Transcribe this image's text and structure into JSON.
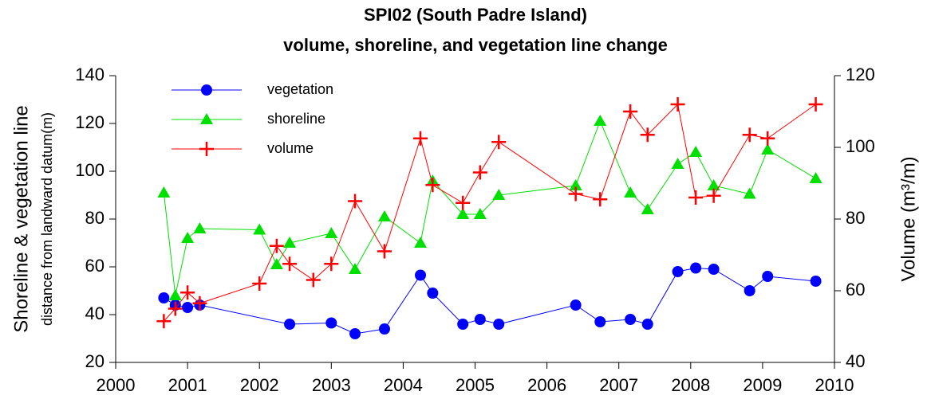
{
  "chart_data": {
    "type": "line",
    "title": "SPI02 (South Padre Island)",
    "subtitle": "volume, shoreline, and vegetation line change",
    "y_label": "Shoreline & vegetation line",
    "y_label_sub": "distance from landward datum(m)",
    "y2_label": "Volume (m³/m)",
    "xlim": [
      2000,
      2010
    ],
    "xticks": [
      2000,
      2001,
      2002,
      2003,
      2004,
      2005,
      2006,
      2007,
      2008,
      2009,
      2010
    ],
    "ylim": [
      20,
      140
    ],
    "yticks": [
      20,
      40,
      60,
      80,
      100,
      120,
      140
    ],
    "y2lim": [
      40,
      120
    ],
    "y2ticks": [
      40,
      60,
      80,
      100,
      120
    ],
    "grid": false,
    "legend": "upper-left",
    "series": [
      {
        "name": "vegetation",
        "color": "#0000ff",
        "marker": "circle",
        "x": [
          2000.67,
          2000.83,
          2001.0,
          2001.17,
          2002.42,
          2003.0,
          2003.33,
          2003.74,
          2004.24,
          2004.41,
          2004.83,
          2005.07,
          2005.33,
          2006.4,
          2006.74,
          2007.16,
          2007.4,
          2007.82,
          2008.07,
          2008.32,
          2008.82,
          2009.07,
          2009.74
        ],
        "values": [
          47,
          44,
          43,
          44,
          36,
          36.5,
          32,
          34,
          56.5,
          49,
          36,
          38,
          36,
          44,
          37,
          38,
          36,
          58,
          59.5,
          59,
          50,
          56,
          54
        ]
      },
      {
        "name": "shoreline",
        "color": "#00e000",
        "marker": "triangle",
        "x": [
          2000.67,
          2000.83,
          2001.0,
          2001.17,
          2002.0,
          2002.24,
          2002.42,
          2003.0,
          2003.33,
          2003.74,
          2004.24,
          2004.41,
          2004.83,
          2005.07,
          2005.33,
          2006.4,
          2006.74,
          2007.16,
          2007.4,
          2007.82,
          2008.07,
          2008.32,
          2008.82,
          2009.07,
          2009.74
        ],
        "values": [
          91,
          48,
          72,
          76,
          75.5,
          61,
          70,
          74,
          59,
          81,
          70,
          96,
          82,
          82,
          90,
          94,
          121,
          91,
          84,
          103,
          108,
          94,
          90.5,
          109,
          97
        ]
      },
      {
        "name": "volume",
        "color": "#ff0000",
        "marker": "plus",
        "axis": "y2",
        "x": [
          2000.67,
          2000.83,
          2001.0,
          2001.17,
          2002.0,
          2002.24,
          2002.42,
          2002.75,
          2003.0,
          2003.33,
          2003.74,
          2004.24,
          2004.41,
          2004.83,
          2005.07,
          2005.33,
          2006.4,
          2006.74,
          2007.16,
          2007.4,
          2007.82,
          2008.07,
          2008.32,
          2008.82,
          2009.07,
          2009.74
        ],
        "values": [
          51.5,
          55,
          59.5,
          56.5,
          62,
          72.5,
          67.5,
          63,
          67.5,
          85,
          71,
          102.5,
          89.5,
          84.5,
          93,
          101.5,
          87,
          85.5,
          110,
          103.5,
          112,
          86,
          86.5,
          103.5,
          102.5,
          112
        ]
      }
    ]
  }
}
